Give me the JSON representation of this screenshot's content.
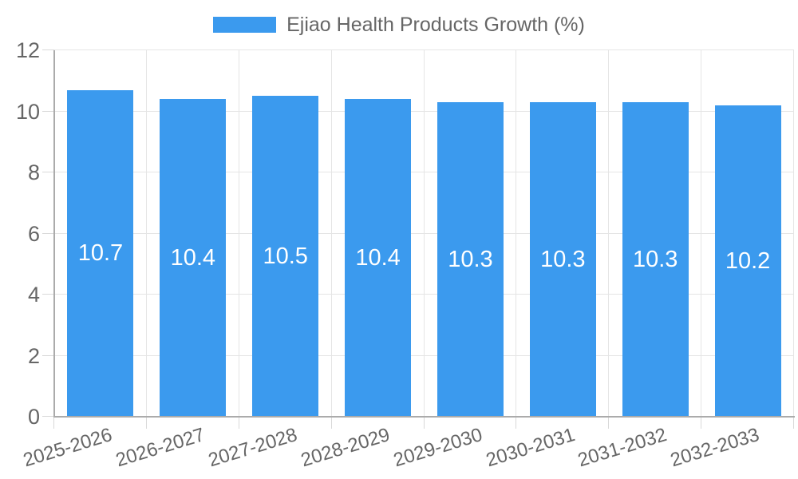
{
  "chart_data": {
    "type": "bar",
    "title": "Ejiao Health Products Growth (%)",
    "categories": [
      "2025-2026",
      "2026-2027",
      "2027-2028",
      "2028-2029",
      "2029-2030",
      "2030-2031",
      "2031-2032",
      "2032-2033"
    ],
    "values": [
      10.7,
      10.4,
      10.5,
      10.4,
      10.3,
      10.3,
      10.3,
      10.2
    ],
    "value_labels": [
      "10.7",
      "10.4",
      "10.5",
      "10.4",
      "10.3",
      "10.3",
      "10.3",
      "10.2"
    ],
    "xlabel": "",
    "ylabel": "",
    "ylim": [
      0,
      12
    ],
    "yticks": [
      0,
      2,
      4,
      6,
      8,
      10,
      12
    ],
    "grid": true,
    "legend_position": "top",
    "colors": {
      "bar": "#3B9AEE",
      "bar_label": "#FFFFFF",
      "text": "#666666",
      "gridline": "#E5E5E5",
      "axis_line": "#ABABAB",
      "tick": "#D9D9D9",
      "background": "#FFFFFF"
    }
  }
}
